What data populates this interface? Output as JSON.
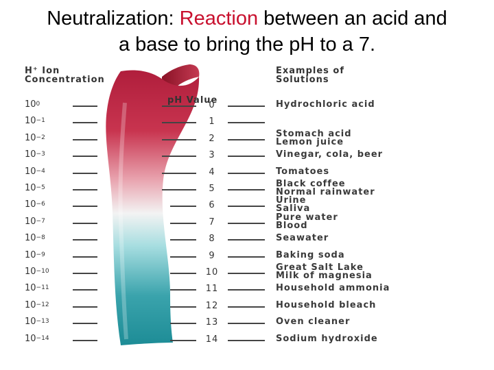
{
  "title": {
    "prefix": "Neutralization: ",
    "highlight": "Reaction",
    "suffix_line1": " between an acid and",
    "line2": "a base to bring the pH to a 7."
  },
  "colors": {
    "title_highlight": "#c8102e",
    "acid_end": "#b01e3c",
    "neutral_mid": "#f3f3f3",
    "base_end": "#1d8c96"
  },
  "headers": {
    "concentration_line1": "H⁺ Ion",
    "concentration_line2": "Concentration",
    "ph": "pH Value",
    "examples_line1": "Examples of",
    "examples_line2": "Solutions"
  },
  "rows": [
    {
      "exp": "0",
      "ph": "0",
      "examples": [
        "Hydrochloric acid"
      ]
    },
    {
      "exp": "−1",
      "ph": "1",
      "examples": []
    },
    {
      "exp": "−2",
      "ph": "2",
      "examples": [
        "Stomach acid",
        "Lemon juice"
      ]
    },
    {
      "exp": "−3",
      "ph": "3",
      "examples": [
        "Vinegar, cola, beer"
      ]
    },
    {
      "exp": "−4",
      "ph": "4",
      "examples": [
        "Tomatoes"
      ]
    },
    {
      "exp": "−5",
      "ph": "5",
      "examples": [
        "Black coffee",
        "Normal rainwater"
      ]
    },
    {
      "exp": "−6",
      "ph": "6",
      "examples": [
        "Urine",
        "Saliva"
      ]
    },
    {
      "exp": "−7",
      "ph": "7",
      "examples": [
        "Pure water",
        "Blood"
      ]
    },
    {
      "exp": "−8",
      "ph": "8",
      "examples": [
        "Seawater"
      ]
    },
    {
      "exp": "−9",
      "ph": "9",
      "examples": [
        "Baking soda"
      ]
    },
    {
      "exp": "−10",
      "ph": "10",
      "examples": [
        "Great Salt Lake",
        "Milk of magnesia"
      ]
    },
    {
      "exp": "−11",
      "ph": "11",
      "examples": [
        "Household ammonia"
      ]
    },
    {
      "exp": "−12",
      "ph": "12",
      "examples": [
        "Household bleach"
      ]
    },
    {
      "exp": "−13",
      "ph": "13",
      "examples": [
        "Oven cleaner"
      ]
    },
    {
      "exp": "−14",
      "ph": "14",
      "examples": [
        "Sodium hydroxide"
      ]
    }
  ]
}
